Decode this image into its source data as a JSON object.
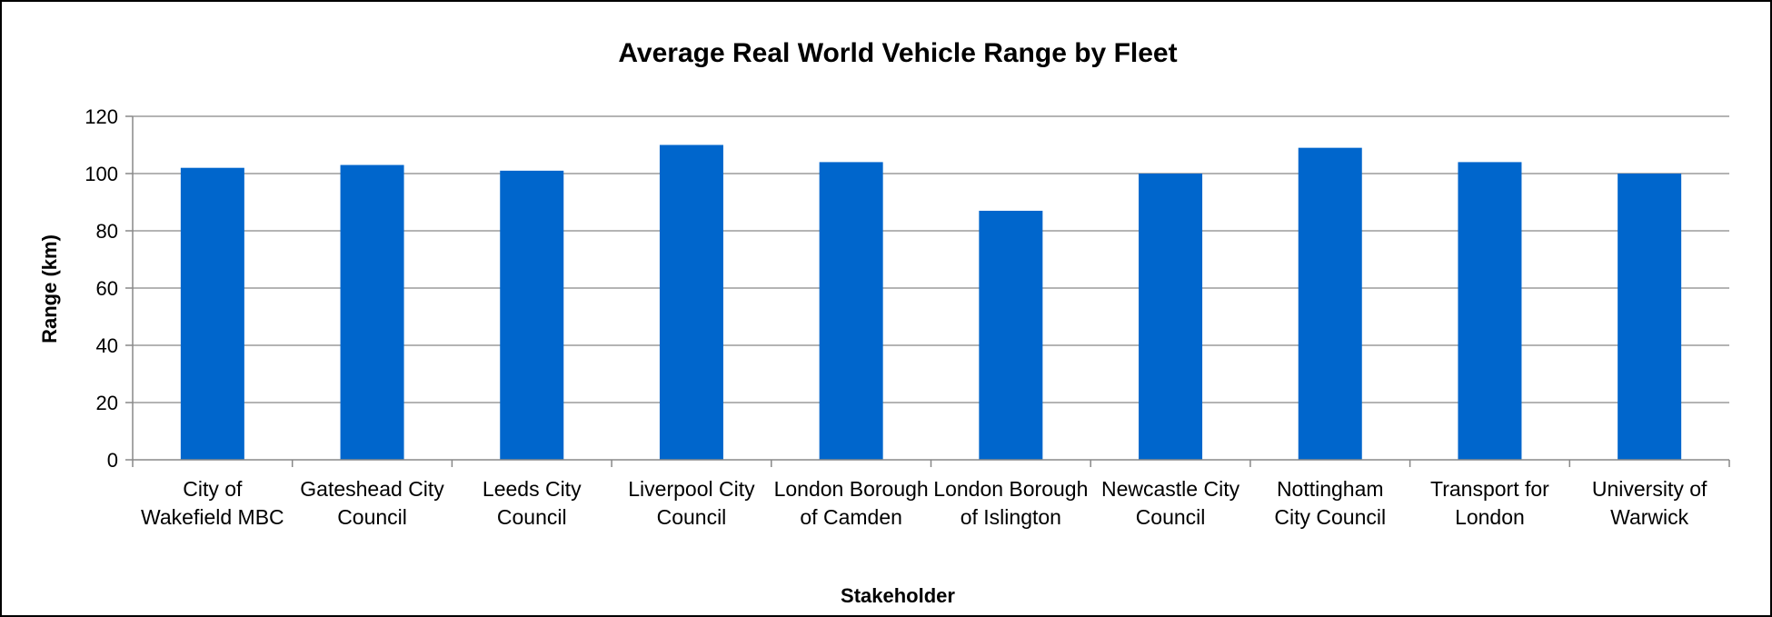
{
  "chart_data": {
    "type": "bar",
    "title": "Average Real World Vehicle Range by Fleet",
    "xlabel": "Stakeholder",
    "ylabel": "Range (km)",
    "ylim": [
      0,
      120
    ],
    "y_ticks": [
      0,
      20,
      40,
      60,
      80,
      100,
      120
    ],
    "grid": true,
    "legend": "none",
    "bar_color": "#0066CC",
    "categories": [
      "City of Wakefield MBC",
      "Gateshead City Council",
      "Leeds City Council",
      "Liverpool City Council",
      "London Borough of Camden",
      "London Borough of Islington",
      "Newcastle City Council",
      "Nottingham City Council",
      "Transport for London",
      "University of Warwick"
    ],
    "values": [
      102,
      103,
      101,
      110,
      104,
      87,
      100,
      109,
      104,
      100
    ]
  }
}
